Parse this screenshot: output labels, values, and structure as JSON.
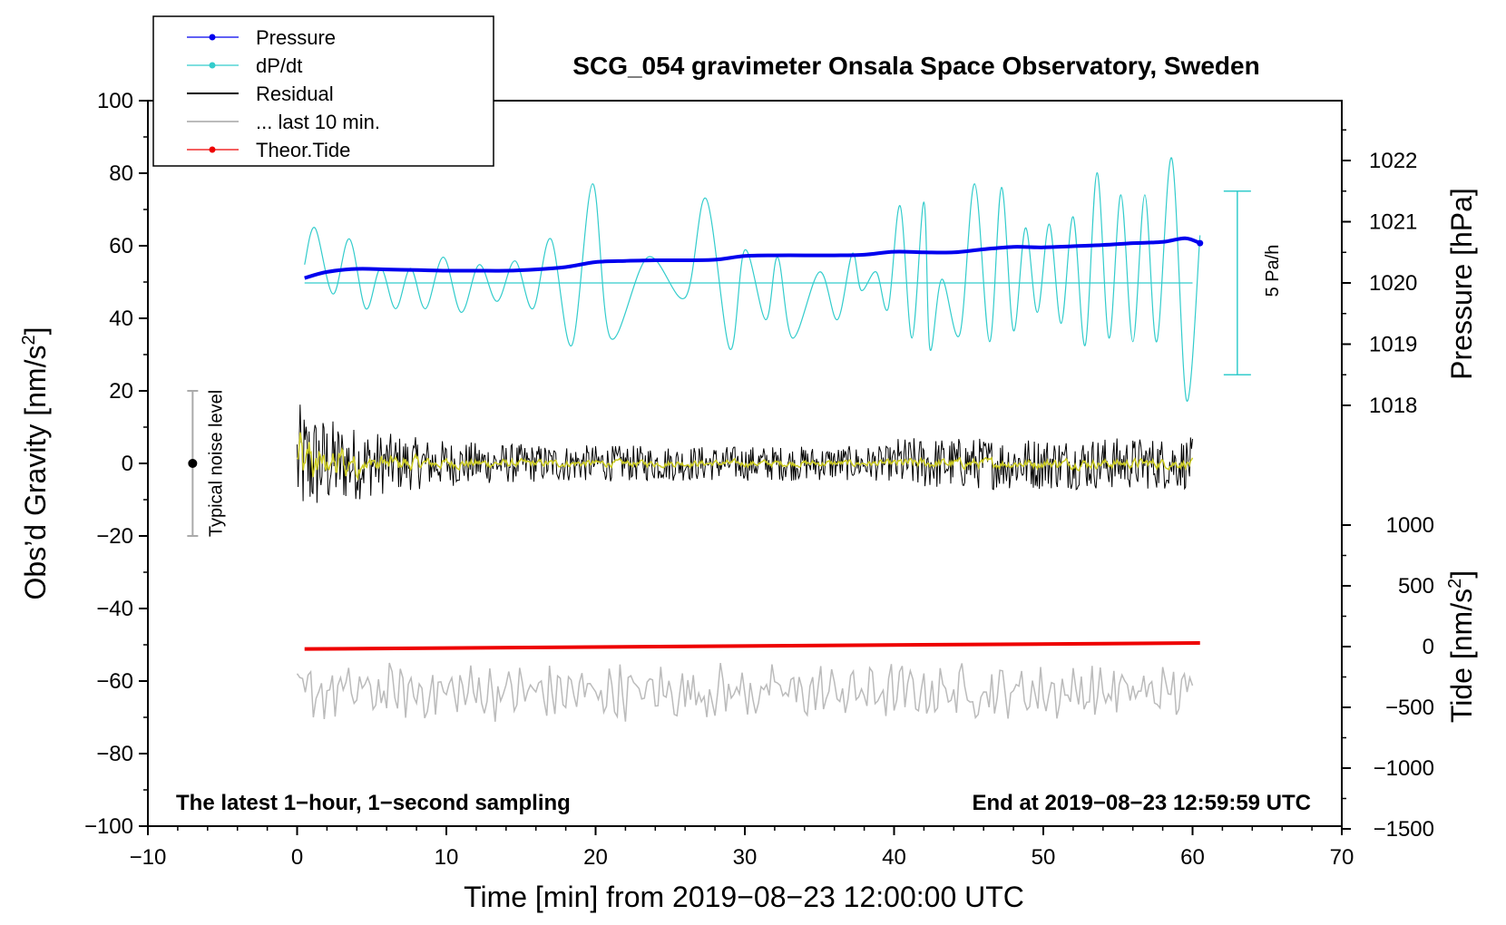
{
  "chart_data": {
    "type": "line",
    "title": "SCG_054 gravimeter Onsala Space Observatory, Sweden",
    "xlabel": "Time [min] from 2019−08−23 12:00:00 UTC",
    "ylabel": "Obs’d Gravity [nm/s²]",
    "ylabel_main": "Obs’d Gravity [nm/s",
    "ylabel_sup": "2",
    "ylabel_end": "]",
    "y2label": "Pressure [hPa]",
    "y3label_main": "Tide [nm/s",
    "y3label_sup": "2",
    "y3label_end": "]",
    "xlim": [
      -10,
      70
    ],
    "ylim": [
      -100,
      100
    ],
    "x_ticks": [
      "−10",
      "0",
      "10",
      "20",
      "30",
      "40",
      "50",
      "60",
      "70"
    ],
    "y_ticks": [
      "−100",
      "−80",
      "−60",
      "−40",
      "−20",
      "0",
      "20",
      "40",
      "60",
      "80",
      "100"
    ],
    "pressure_axis": {
      "ticks": [
        "1018",
        "1019",
        "1020",
        "1021",
        "1022"
      ],
      "values": [
        1018,
        1019,
        1020,
        1021,
        1022
      ]
    },
    "tide_axis": {
      "ticks": [
        "−1500",
        "−1000",
        "−500",
        "0",
        "500",
        "1000"
      ],
      "values": [
        -1500,
        -1000,
        -500,
        0,
        500,
        1000
      ]
    },
    "legend": [
      {
        "label": "Pressure",
        "color": "#0000ee",
        "marker": true
      },
      {
        "label": "dP/dt",
        "color": "#33cccc",
        "marker": true
      },
      {
        "label": "Residual",
        "color": "#000000",
        "marker": false
      },
      {
        "label": "... last 10 min.",
        "color": "#bbbbbb",
        "marker": false
      },
      {
        "label": "Theor.Tide",
        "color": "#ee0000",
        "marker": true
      }
    ],
    "series": [
      {
        "name": "Pressure",
        "axis": "pressure_hPa",
        "color": "#0000ee",
        "x": [
          0.5,
          2,
          4,
          6,
          8,
          10,
          12,
          14,
          16,
          18,
          20,
          22,
          24,
          26,
          28,
          30,
          32,
          34,
          36,
          38,
          40,
          42,
          44,
          46,
          48,
          50,
          52,
          54,
          56,
          58,
          59.5,
          60.5
        ],
        "values": [
          1020.08,
          1020.18,
          1020.23,
          1020.22,
          1020.21,
          1020.2,
          1020.2,
          1020.2,
          1020.22,
          1020.26,
          1020.34,
          1020.36,
          1020.37,
          1020.37,
          1020.38,
          1020.44,
          1020.45,
          1020.45,
          1020.45,
          1020.46,
          1020.51,
          1020.5,
          1020.5,
          1020.55,
          1020.59,
          1020.58,
          1020.6,
          1020.62,
          1020.65,
          1020.67,
          1020.73,
          1020.65
        ]
      },
      {
        "name": "dP/dt",
        "axis": "rate_Pa_per_h",
        "color": "#33cccc",
        "zero_line_hPa": 1020,
        "x": [
          0.5,
          1.2,
          2.4,
          3.5,
          4.6,
          5.6,
          6.6,
          7.6,
          8.6,
          9.8,
          11,
          12.2,
          13.4,
          14.6,
          15.8,
          17,
          18.4,
          19.8,
          21,
          23.5,
          26,
          27.4,
          29,
          30,
          31.4,
          32.2,
          33.2,
          35,
          36.2,
          37.2,
          37.8,
          38.8,
          39.6,
          40.4,
          41.2,
          42,
          42.4,
          43.2,
          44.4,
          45.4,
          46.4,
          47.2,
          48,
          48.8,
          49.6,
          50.4,
          51.2,
          52,
          52.8,
          53.6,
          54.4,
          55.2,
          56,
          56.8,
          57.6,
          58.6,
          59.6,
          60.5
        ],
        "values": [
          0.5,
          1.5,
          -0.3,
          1.2,
          -0.7,
          0.4,
          -0.7,
          0.4,
          -0.7,
          0.7,
          -0.8,
          0.5,
          -0.5,
          0.6,
          -0.7,
          1.2,
          -1.7,
          2.7,
          -1.5,
          0.7,
          -0.4,
          2.3,
          -1.8,
          0.9,
          -1.0,
          0.7,
          -1.5,
          0.3,
          -1.0,
          0.8,
          -0.2,
          0.3,
          -0.7,
          2.1,
          -1.5,
          2.2,
          -1.8,
          0.1,
          -1.4,
          2.7,
          -1.6,
          2.6,
          -1.3,
          1.5,
          -0.8,
          1.6,
          -1.1,
          1.8,
          -1.7,
          3.0,
          -1.5,
          2.4,
          -1.6,
          2.4,
          -1.6,
          3.4,
          -3.2,
          1.3
        ]
      },
      {
        "name": "Residual",
        "axis": "gravity_nm_s2",
        "color": "#000000",
        "x_start": 0,
        "x_end": 60,
        "y_center": 0,
        "amplitude_range": [
          -20,
          20
        ]
      },
      {
        "name": "Residual (smoothed)",
        "axis": "gravity_nm_s2",
        "color": "#cccc22",
        "x_start": 0,
        "x_end": 60,
        "y_center": 0
      },
      {
        "name": "... last 10 min.",
        "axis": "gravity_nm_s2",
        "color": "#bbbbbb",
        "x_start": 0,
        "x_end": 60,
        "y_center": -63,
        "amplitude_range": [
          -72,
          -53
        ]
      },
      {
        "name": "Theor.Tide",
        "axis": "tide_nm_s2",
        "color": "#ee0000",
        "x": [
          0.5,
          60.5
        ],
        "values": [
          -20,
          30
        ]
      }
    ],
    "scale_bar": {
      "label": "5 Pa/h",
      "x": 63,
      "y_range": [
        1018.5,
        1021.5
      ]
    },
    "noise_bar": {
      "label": "Typical noise level",
      "x": -7,
      "y_center": 0,
      "y_range": [
        -20,
        20
      ]
    },
    "notes": {
      "left": "The latest 1−hour, 1−second sampling",
      "right": "End at 2019−08−23 12:59:59 UTC"
    }
  }
}
